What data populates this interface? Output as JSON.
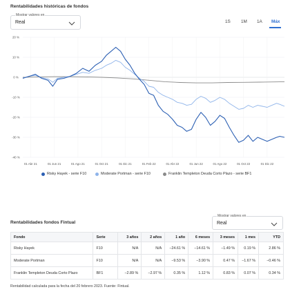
{
  "history": {
    "title": "Rentabilidades históricas de fondos",
    "select_label": "Mostrar valores en",
    "select_value": "Real",
    "periods": [
      "1S",
      "1M",
      "1A",
      "Máx"
    ],
    "active_period": "Máx"
  },
  "chart_data": {
    "type": "line",
    "x_ticks": [
      "01 Abr 21",
      "01 Jun 21",
      "01 Ago 21",
      "01 Oct 21",
      "01 Dic 21",
      "01 Feb 22",
      "01 Abr 22",
      "01 Jun 22",
      "01 Ago 22",
      "01 Oct 22",
      "01 Dic 22"
    ],
    "y_ticks": [
      "20 %",
      "10 %",
      "0 %",
      "-10 %",
      "-20 %",
      "-30 %",
      "-40 %"
    ],
    "ylim": [
      -40,
      20
    ],
    "grid": true,
    "legend_position": "bottom",
    "series": [
      {
        "name": "Risky Hayek - serie F10",
        "color": "#2b5fb3",
        "points": [
          [
            0,
            -0.5
          ],
          [
            0.4,
            0.5
          ],
          [
            0.8,
            1.5
          ],
          [
            1.2,
            -0.5
          ],
          [
            1.6,
            -1.5
          ],
          [
            1.9,
            -4.5
          ],
          [
            2.2,
            -1
          ],
          [
            2.6,
            -0.5
          ],
          [
            3,
            0.5
          ],
          [
            3.4,
            2
          ],
          [
            3.8,
            4.5
          ],
          [
            4.2,
            3
          ],
          [
            4.6,
            6
          ],
          [
            5,
            8
          ],
          [
            5.3,
            11
          ],
          [
            5.6,
            13
          ],
          [
            5.9,
            15
          ],
          [
            6.2,
            13
          ],
          [
            6.5,
            9
          ],
          [
            6.8,
            6
          ],
          [
            7.1,
            2
          ],
          [
            7.4,
            -1
          ],
          [
            7.7,
            -3.5
          ],
          [
            8,
            -8
          ],
          [
            8.3,
            -9
          ],
          [
            8.6,
            -14
          ],
          [
            8.9,
            -17
          ],
          [
            9.2,
            -18.5
          ],
          [
            9.5,
            -21
          ],
          [
            9.8,
            -24
          ],
          [
            10.1,
            -25
          ],
          [
            10.4,
            -27
          ],
          [
            10.7,
            -26
          ],
          [
            11,
            -21
          ],
          [
            11.3,
            -17.5
          ],
          [
            11.6,
            -20
          ],
          [
            11.9,
            -24
          ],
          [
            12.2,
            -22
          ],
          [
            12.5,
            -19
          ],
          [
            12.8,
            -20.5
          ],
          [
            13.1,
            -25
          ],
          [
            13.4,
            -29
          ],
          [
            13.7,
            -32.5
          ],
          [
            14,
            -31.5
          ],
          [
            14.3,
            -29
          ],
          [
            14.6,
            -32
          ],
          [
            14.9,
            -30
          ],
          [
            15.2,
            -31
          ],
          [
            15.5,
            -32
          ],
          [
            15.8,
            -31
          ],
          [
            16.1,
            -30
          ],
          [
            16.3,
            -29.5
          ],
          [
            16.6,
            -30
          ]
        ]
      },
      {
        "name": "Moderate Portman - serie F10",
        "color": "#8fb4ea",
        "points": [
          [
            0,
            -0.3
          ],
          [
            0.4,
            0.5
          ],
          [
            0.8,
            1
          ],
          [
            1.2,
            -0.2
          ],
          [
            1.6,
            -0.8
          ],
          [
            1.9,
            -2.5
          ],
          [
            2.2,
            -0.5
          ],
          [
            2.6,
            0
          ],
          [
            3,
            0.5
          ],
          [
            3.4,
            1.5
          ],
          [
            3.8,
            2.5
          ],
          [
            4.2,
            2
          ],
          [
            4.6,
            3.5
          ],
          [
            5,
            4.5
          ],
          [
            5.3,
            6
          ],
          [
            5.6,
            7
          ],
          [
            5.9,
            8.5
          ],
          [
            6.2,
            7.5
          ],
          [
            6.5,
            5
          ],
          [
            6.8,
            3.5
          ],
          [
            7.1,
            1.5
          ],
          [
            7.4,
            -0.5
          ],
          [
            7.7,
            -2
          ],
          [
            8,
            -4.5
          ],
          [
            8.3,
            -5
          ],
          [
            8.6,
            -7.5
          ],
          [
            8.9,
            -9
          ],
          [
            9.2,
            -10
          ],
          [
            9.5,
            -11
          ],
          [
            9.8,
            -12.5
          ],
          [
            10.1,
            -13
          ],
          [
            10.4,
            -14
          ],
          [
            10.7,
            -13.5
          ],
          [
            11,
            -11
          ],
          [
            11.3,
            -9.5
          ],
          [
            11.6,
            -10.5
          ],
          [
            11.9,
            -12.5
          ],
          [
            12.2,
            -11.5
          ],
          [
            12.5,
            -10
          ],
          [
            12.8,
            -11
          ],
          [
            13.1,
            -13
          ],
          [
            13.4,
            -14.5
          ],
          [
            13.7,
            -16
          ],
          [
            14,
            -15.5
          ],
          [
            14.3,
            -14
          ],
          [
            14.6,
            -15
          ],
          [
            14.9,
            -14
          ],
          [
            15.2,
            -14.5
          ],
          [
            15.5,
            -15
          ],
          [
            15.8,
            -14
          ],
          [
            16.1,
            -13
          ],
          [
            16.3,
            -13.5
          ],
          [
            16.6,
            -14.5
          ]
        ]
      },
      {
        "name": "Franklin Templeton Deuda Corto Plazo - serie BF1",
        "color": "#8a8a8a",
        "points": [
          [
            0,
            0
          ],
          [
            1,
            0.2
          ],
          [
            2,
            0.3
          ],
          [
            3,
            0.3
          ],
          [
            4,
            0.2
          ],
          [
            5,
            0
          ],
          [
            6,
            -0.3
          ],
          [
            7,
            -0.8
          ],
          [
            8,
            -1.5
          ],
          [
            9,
            -2.2
          ],
          [
            10,
            -2.6
          ],
          [
            11,
            -2.8
          ],
          [
            12,
            -2.8
          ],
          [
            13,
            -2.6
          ],
          [
            14,
            -2.5
          ],
          [
            15,
            -2.4
          ],
          [
            16,
            -2.3
          ],
          [
            16.6,
            -2.2
          ]
        ]
      }
    ]
  },
  "table_section": {
    "title": "Rentabilidades fondos Fintual",
    "select_label": "Mostrar valores en",
    "select_value": "Real",
    "columns": [
      "Fondo",
      "Serie",
      "3 años",
      "2 años",
      "1 año",
      "6 meses",
      "3 meses",
      "1 mes",
      "YTD"
    ],
    "rows": [
      [
        "Risky Hayek",
        "F10",
        "N/A",
        "N/A",
        "−24.61 %",
        "−14.61 %",
        "−1.49 %",
        "0.19 %",
        "2.86 %"
      ],
      [
        "Moderate Portman",
        "F10",
        "N/A",
        "N/A",
        "−9.53 %",
        "−3.90 %",
        "0.47 %",
        "−1.67 %",
        "−0.46 %"
      ],
      [
        "Franklin Templeton Deuda Corto Plazo",
        "BF1",
        "−2.89 %",
        "−2.97 %",
        "0.35 %",
        "1.12 %",
        "0.83 %",
        "0.07 %",
        "0.34 %"
      ]
    ],
    "footnote": "Rentabilidad calculada para la fecha del 20 febrero 2023. Fuente: Fintual."
  }
}
